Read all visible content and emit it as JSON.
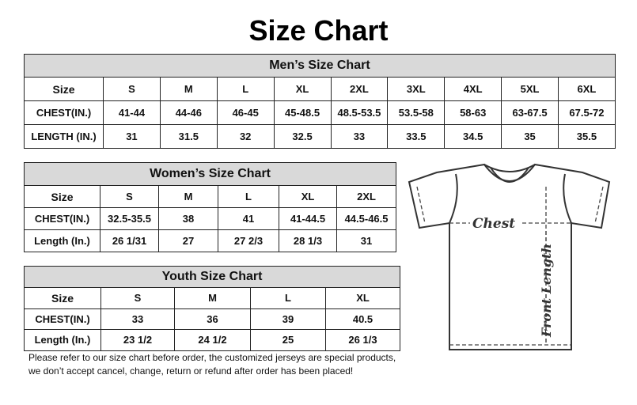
{
  "title": "Size Chart",
  "men": {
    "title": "Men’s Size Chart",
    "rows": [
      [
        "Size",
        "S",
        "M",
        "L",
        "XL",
        "2XL",
        "3XL",
        "4XL",
        "5XL",
        "6XL"
      ],
      [
        "CHEST(IN.)",
        "41-44",
        "44-46",
        "46-45",
        "45-48.5",
        "48.5-53.5",
        "53.5-58",
        "58-63",
        "63-67.5",
        "67.5-72"
      ],
      [
        "LENGTH (IN.)",
        "31",
        "31.5",
        "32",
        "32.5",
        "33",
        "33.5",
        "34.5",
        "35",
        "35.5"
      ]
    ]
  },
  "women": {
    "title": "Women’s Size Chart",
    "rows": [
      [
        "Size",
        "S",
        "M",
        "L",
        "XL",
        "2XL"
      ],
      [
        "CHEST(IN.)",
        "32.5-35.5",
        "38",
        "41",
        "41-44.5",
        "44.5-46.5"
      ],
      [
        "Length (In.)",
        "26 1/31",
        "27",
        "27 2/3",
        "28 1/3",
        "31"
      ]
    ]
  },
  "youth": {
    "title": "Youth Size Chart",
    "rows": [
      [
        "Size",
        "S",
        "M",
        "L",
        "XL"
      ],
      [
        "CHEST(IN.)",
        "33",
        "36",
        "39",
        "40.5"
      ],
      [
        "Length (In.)",
        "23 1/2",
        "24 1/2",
        "25",
        "26 1/3"
      ]
    ]
  },
  "note": [
    "Please refer to our size chart before order, the customized jerseys are special products,",
    "we don’t accept cancel, change, return or refund after order has been placed!"
  ],
  "diagram": {
    "chest_label": "Chest",
    "length_label": "Front Length"
  }
}
